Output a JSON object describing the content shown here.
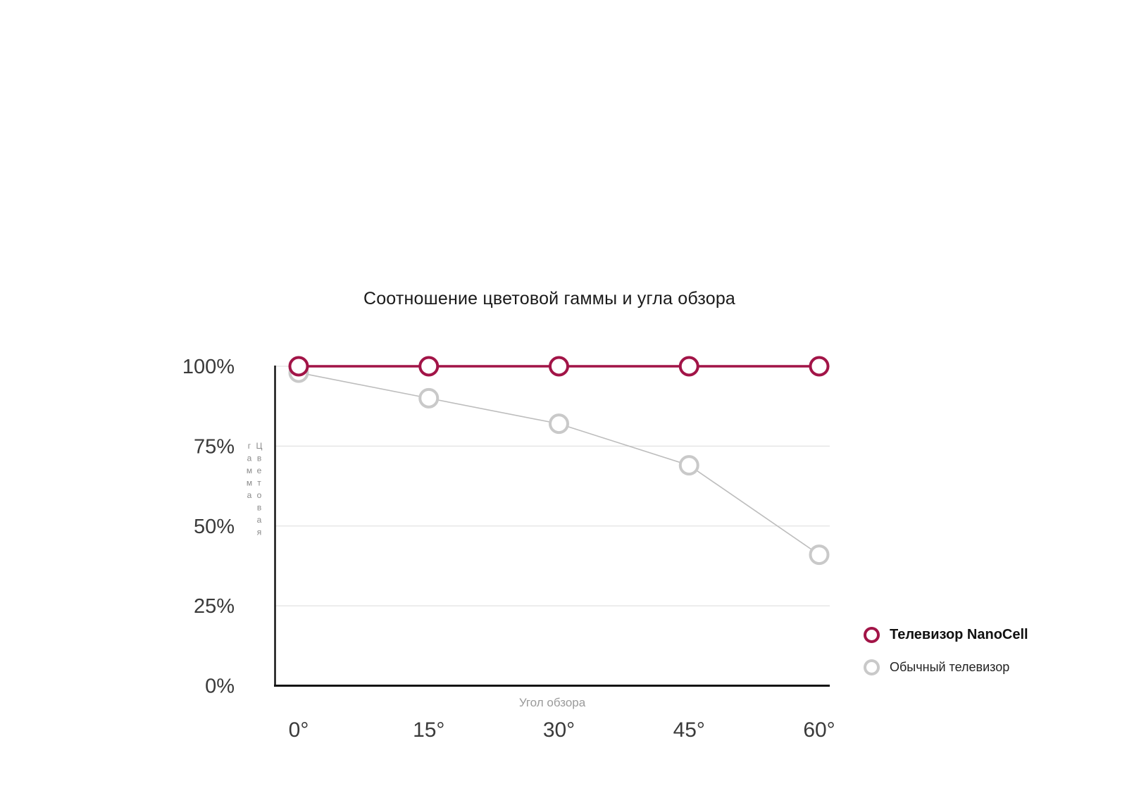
{
  "colors": {
    "background": "#ffffff",
    "axis": "#141414",
    "gridline": "#e2e2e2",
    "tick_text": "#3a3a3a",
    "muted_text": "#9a9a9a"
  },
  "chart_data": {
    "type": "line",
    "title": "Соотношение цветовой гаммы и угла обзора",
    "xlabel": "Угол обзора",
    "ylabel": "Цветовая гамма",
    "categories": [
      "0°",
      "15°",
      "30°",
      "45°",
      "60°"
    ],
    "ylim": [
      0,
      100
    ],
    "grid": "horizontal",
    "legend_position": "right",
    "y_ticks": [
      {
        "value": 100,
        "label": "100%"
      },
      {
        "value": 75,
        "label": "75%"
      },
      {
        "value": 50,
        "label": "50%"
      },
      {
        "value": 25,
        "label": "25%"
      },
      {
        "value": 0,
        "label": "0%"
      }
    ],
    "series": [
      {
        "name": "Телевизор NanoCell",
        "values": [
          100,
          100,
          100,
          100,
          100
        ],
        "color": "#a21447",
        "line_color": "#a21447",
        "marker": "open-circle",
        "line_width": 3.5,
        "legend_bold": true
      },
      {
        "name": "Обычный телевизор",
        "values": [
          98,
          90,
          82,
          69,
          41
        ],
        "color": "#c9c9c9",
        "line_color": "#bdbdbd",
        "marker": "open-circle",
        "line_width": 1.6,
        "legend_bold": false
      }
    ]
  }
}
